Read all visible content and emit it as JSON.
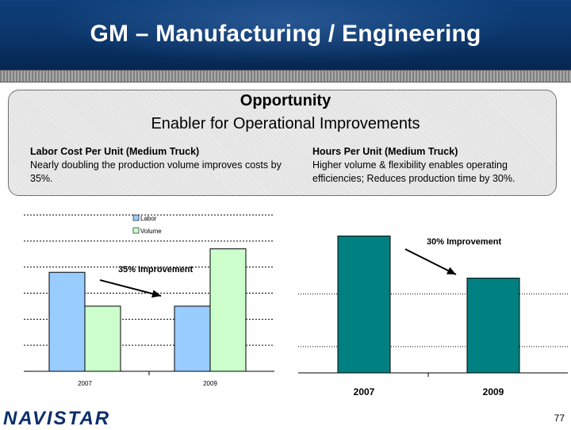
{
  "header": {
    "title": "GM – Manufacturing / Engineering"
  },
  "opportunity": {
    "title": "Opportunity",
    "subtitle": "Enabler for Operational Improvements",
    "left": {
      "heading": "Labor Cost Per Unit (Medium Truck)",
      "body": "Nearly doubling the production volume improves costs by 35%."
    },
    "right": {
      "heading": "Hours Per Unit (Medium Truck)",
      "body": "Higher volume & flexibility enables operating efficiencies; Reduces production time by 30%."
    }
  },
  "colors": {
    "labor": "#99ccff",
    "volume": "#ccffcc",
    "hours": "#008080",
    "header": "#0a3468",
    "brand": "#0b2f6b"
  },
  "chart_data": [
    {
      "type": "bar",
      "title": "Labor Cost Per Unit (Medium Truck)",
      "categories": [
        "2007",
        "2009"
      ],
      "series": [
        {
          "name": "Labor",
          "values": [
            3.8,
            2.5
          ]
        },
        {
          "name": "Volume",
          "values": [
            2.5,
            4.7
          ]
        }
      ],
      "ylim": [
        0,
        6
      ],
      "gridlines": [
        1,
        2,
        3,
        4,
        5
      ],
      "legend": "top-center",
      "annotations": [
        "35% Improvement"
      ]
    },
    {
      "type": "bar",
      "title": "Hours Per Unit (Medium Truck)",
      "categories": [
        "2007",
        "2009"
      ],
      "series": [
        {
          "name": "Hours",
          "values": [
            5.2,
            3.6
          ]
        }
      ],
      "ylim": [
        0,
        6
      ],
      "gridlines": [
        1,
        3
      ],
      "annotations": [
        "30% Improvement"
      ]
    }
  ],
  "footer": {
    "brand": "NAVISTAR",
    "page_number": "77"
  }
}
